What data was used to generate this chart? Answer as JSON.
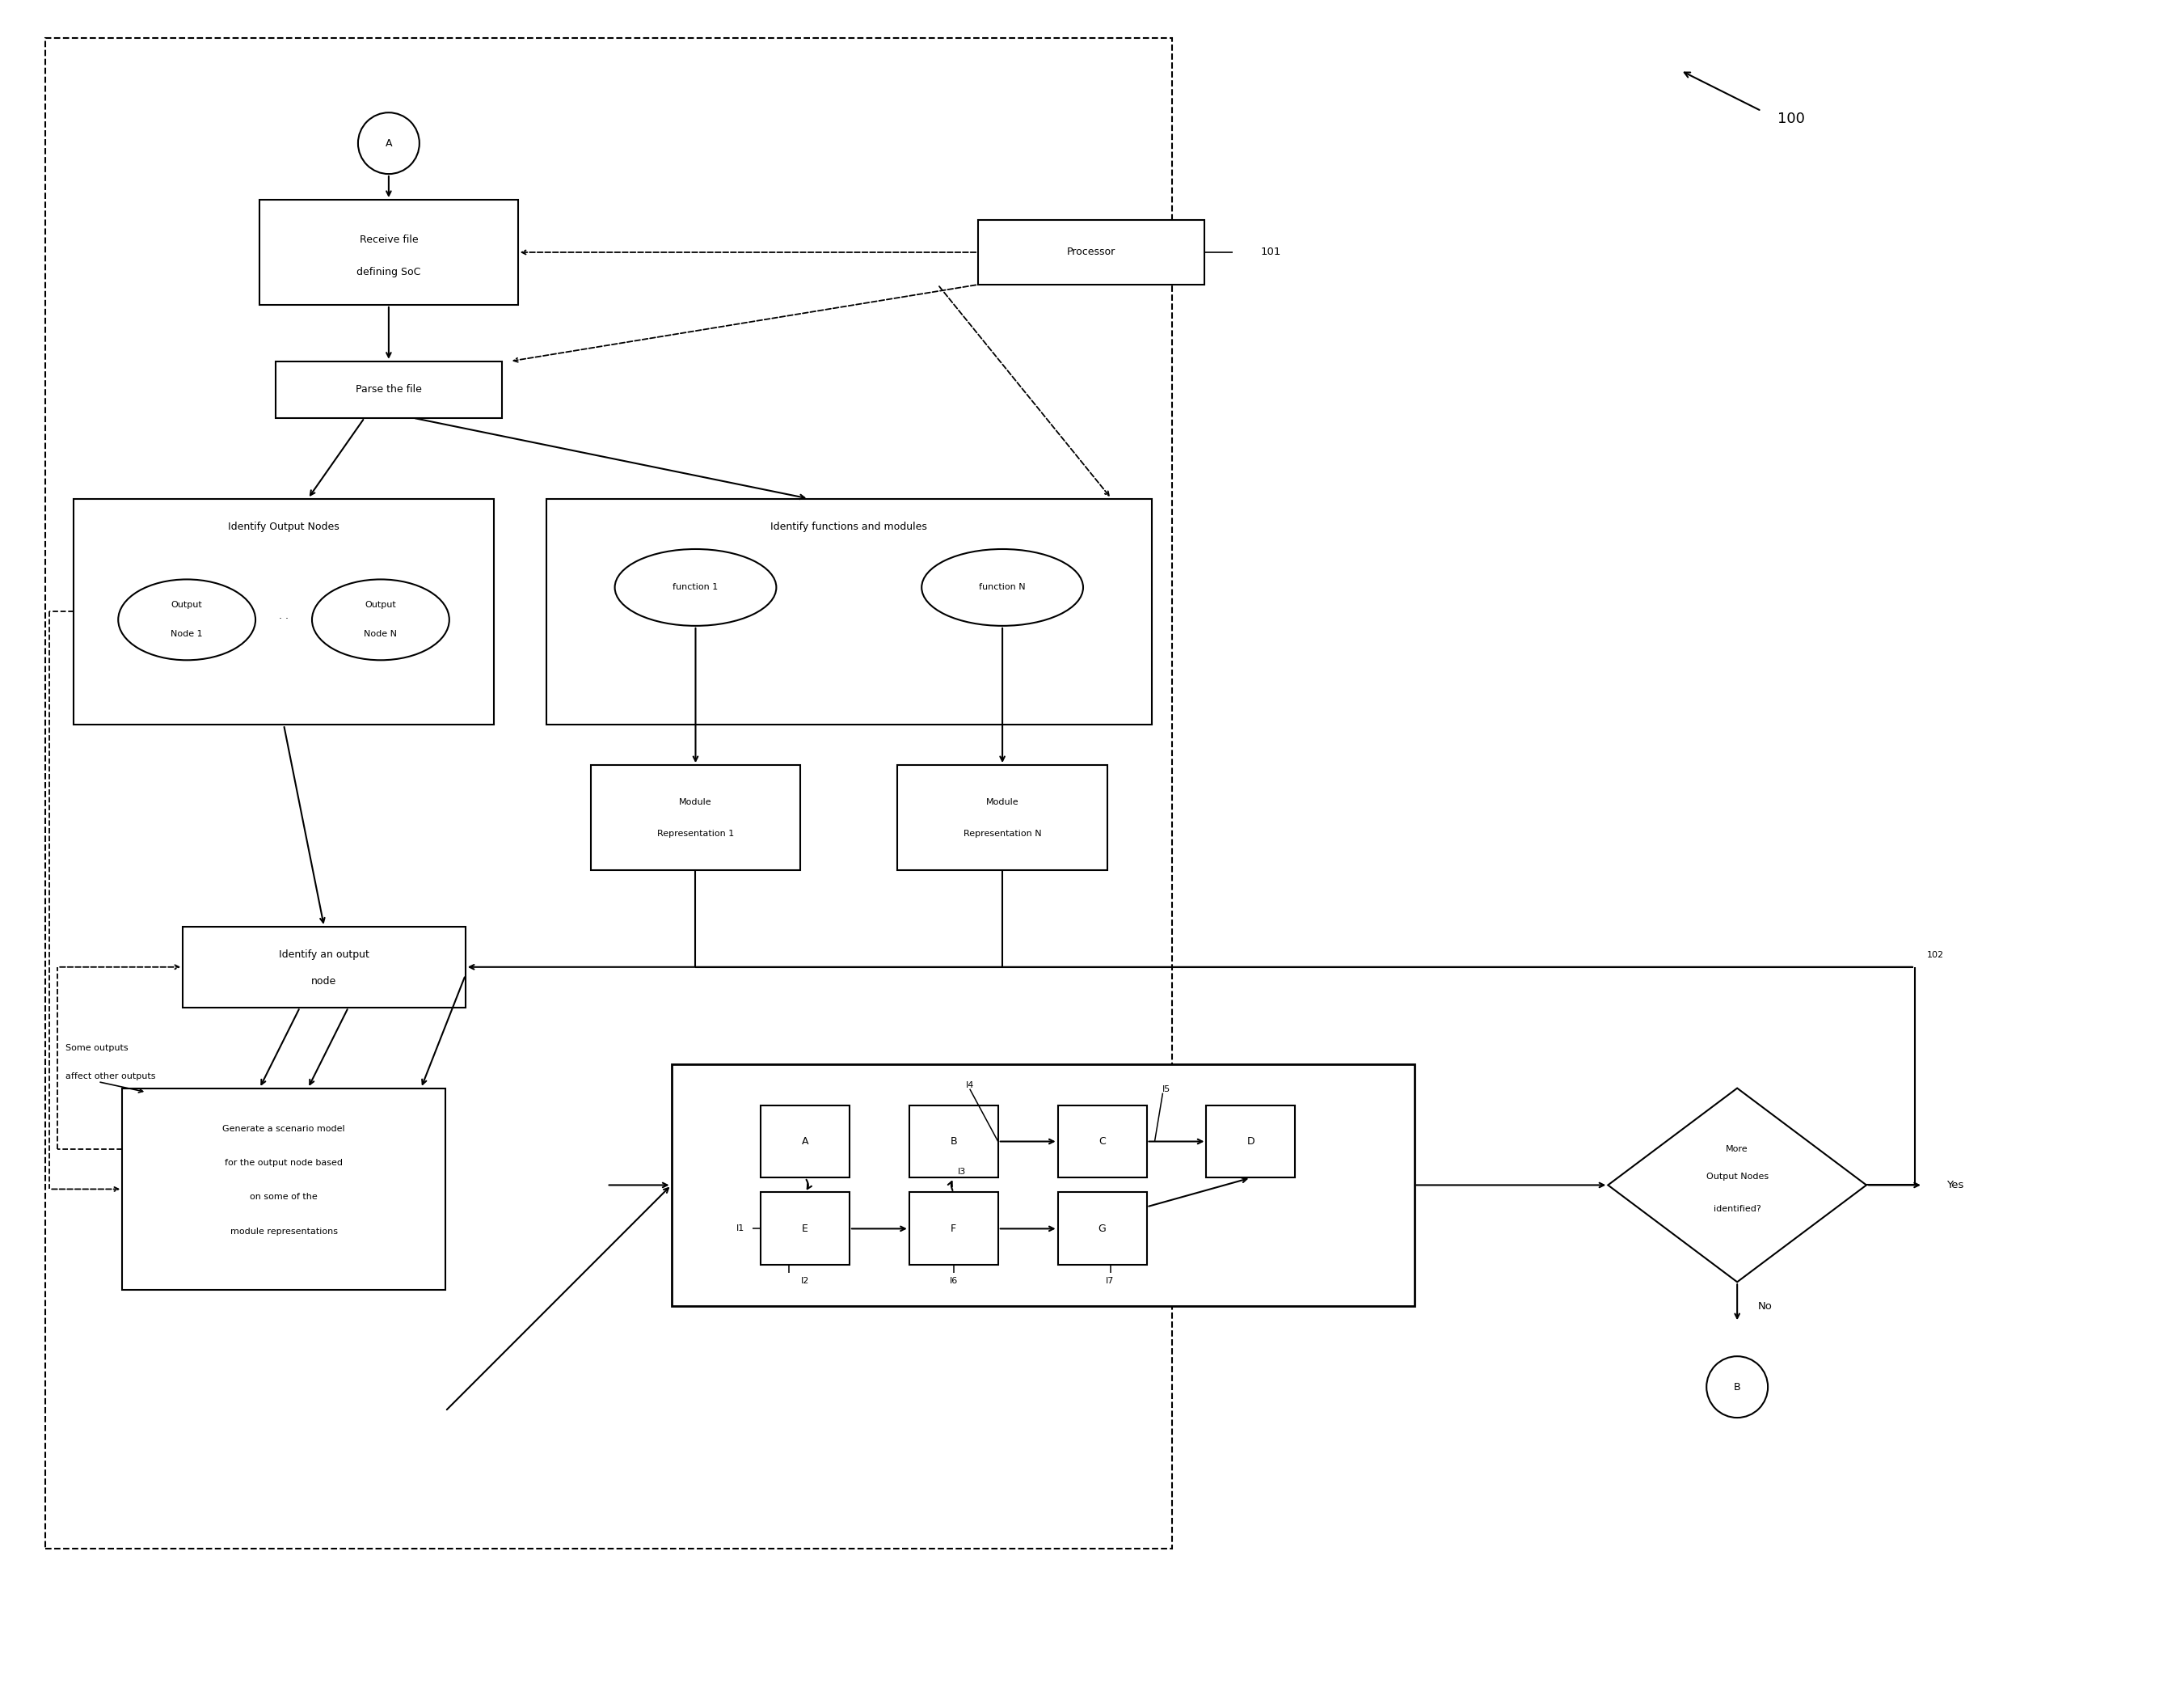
{
  "fig_width": 26.71,
  "fig_height": 20.96,
  "bg_color": "#ffffff",
  "line_color": "#000000",
  "label_100": "100",
  "label_101": "101",
  "label_102": "102"
}
